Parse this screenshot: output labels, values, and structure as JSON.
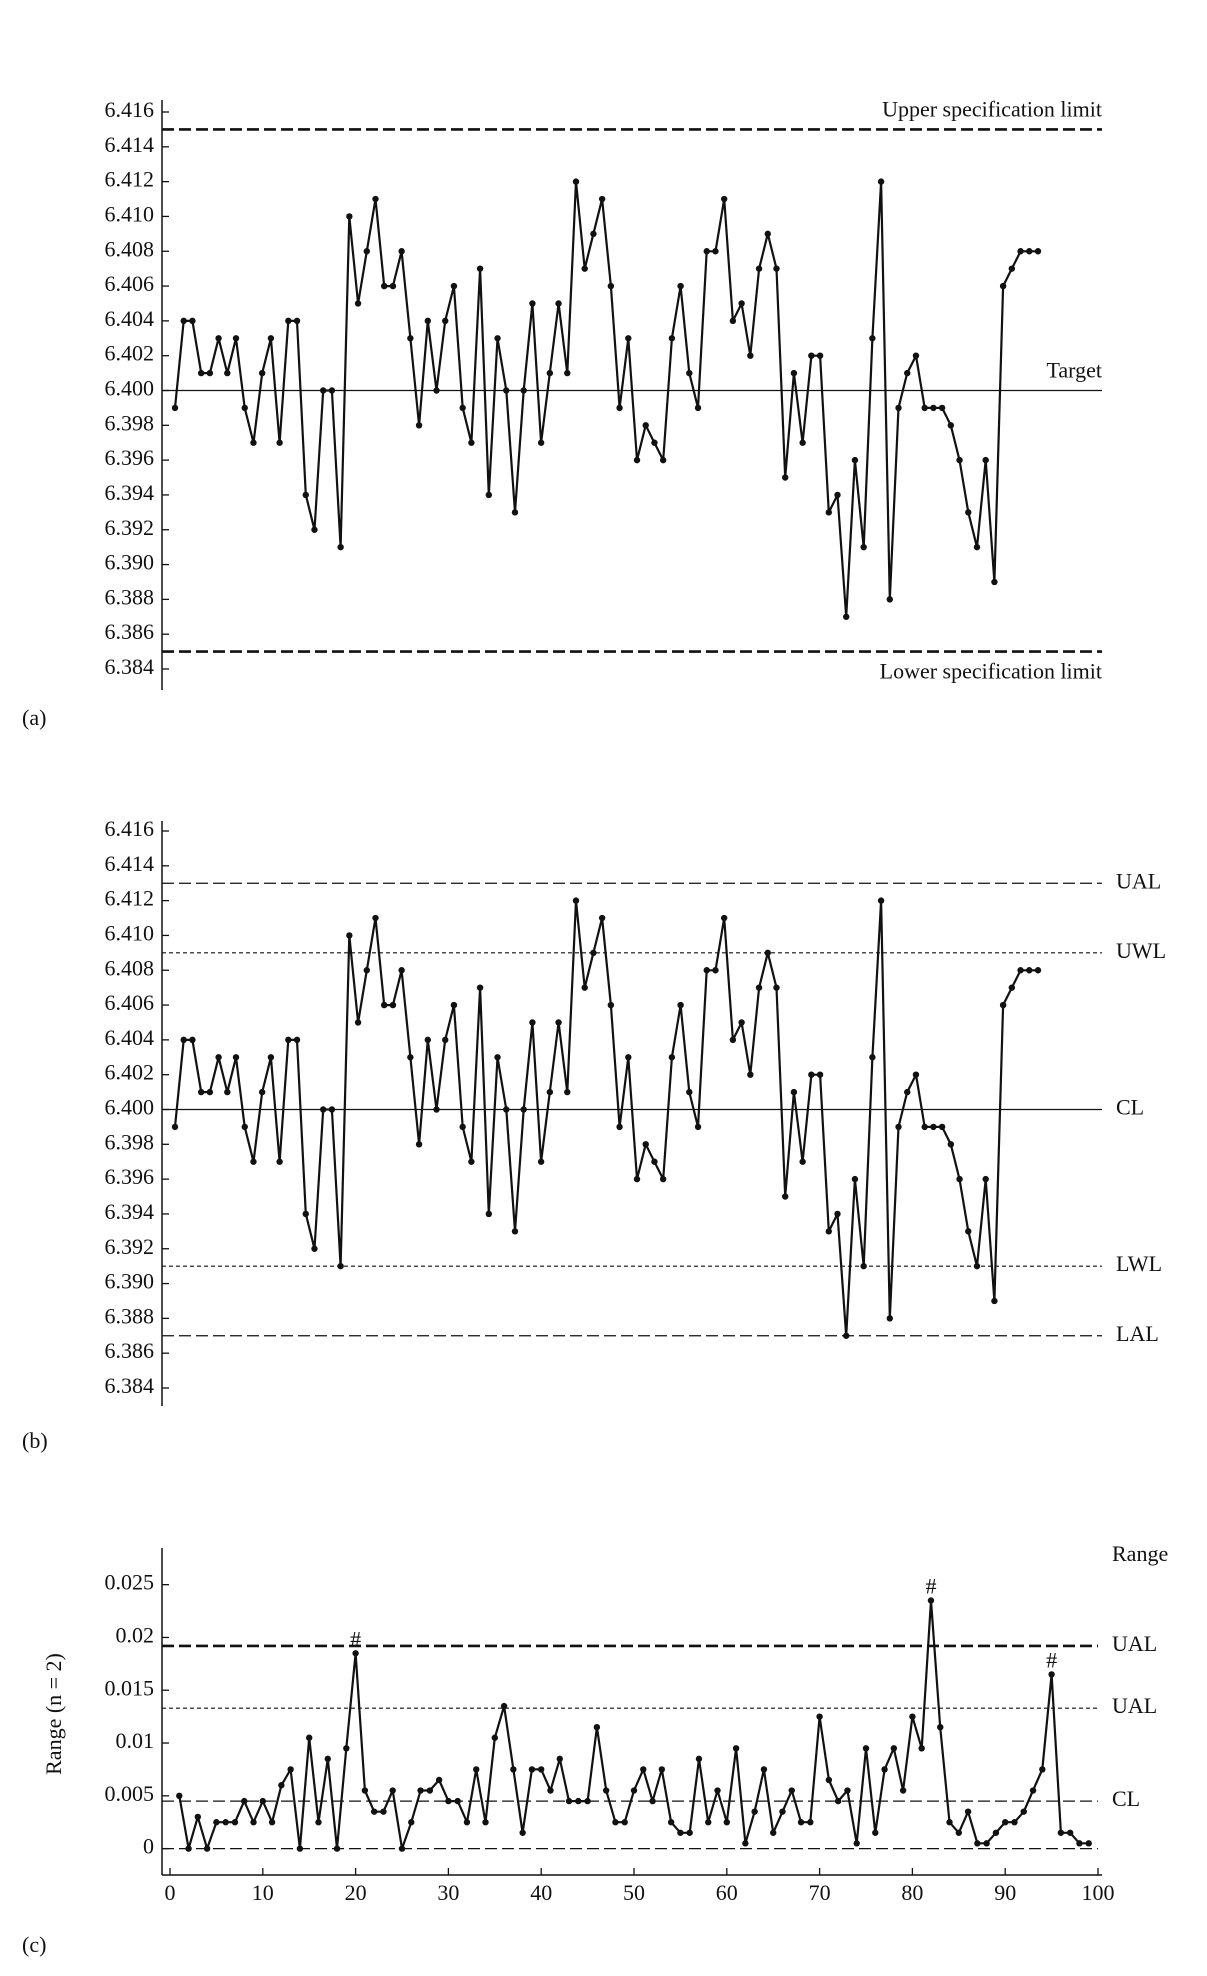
{
  "chart_data": [
    {
      "type": "line",
      "panel_label": "(a)",
      "series": [
        {
          "color": "#111111",
          "values": [
            6.399,
            6.404,
            6.404,
            6.401,
            6.401,
            6.403,
            6.401,
            6.403,
            6.399,
            6.397,
            6.401,
            6.403,
            6.397,
            6.404,
            6.404,
            6.394,
            6.392,
            6.4,
            6.4,
            6.391,
            6.41,
            6.405,
            6.408,
            6.411,
            6.406,
            6.406,
            6.408,
            6.403,
            6.398,
            6.404,
            6.4,
            6.404,
            6.406,
            6.399,
            6.397,
            6.407,
            6.394,
            6.403,
            6.4,
            6.393,
            6.4,
            6.405,
            6.397,
            6.401,
            6.405,
            6.401,
            6.412,
            6.407,
            6.409,
            6.411,
            6.406,
            6.399,
            6.403,
            6.396,
            6.398,
            6.397,
            6.396,
            6.403,
            6.406,
            6.401,
            6.399,
            6.408,
            6.408,
            6.411,
            6.404,
            6.405,
            6.402,
            6.407,
            6.409,
            6.407,
            6.395,
            6.401,
            6.397,
            6.402,
            6.402,
            6.393,
            6.394,
            6.387,
            6.396,
            6.391,
            6.403,
            6.412,
            6.388,
            6.399,
            6.401,
            6.402,
            6.399,
            6.399,
            6.399,
            6.398,
            6.396,
            6.393,
            6.391,
            6.396,
            6.389,
            6.406,
            6.407,
            6.408,
            6.408,
            6.408
          ]
        }
      ],
      "ylim": [
        6.384,
        6.416
      ],
      "yticks": [
        6.384,
        6.386,
        6.388,
        {
          "value": 6.39,
          "label": "6.390"
        },
        6.392,
        6.394,
        6.396,
        6.398,
        {
          "value": 6.4,
          "label": "6.400"
        },
        6.402,
        6.404,
        6.406,
        6.408,
        {
          "value": 6.41,
          "label": "6.410"
        },
        6.412,
        6.414,
        6.416
      ],
      "reference_lines": [
        {
          "value": 6.415,
          "label": "Upper specification limit",
          "style": "thick-dashed",
          "label_position": "above"
        },
        {
          "value": 6.4,
          "label": "Target",
          "style": "solid",
          "label_position": "above"
        },
        {
          "value": 6.385,
          "label": "Lower specification limit",
          "style": "thick-dashed",
          "label_position": "below"
        }
      ]
    },
    {
      "type": "line",
      "panel_label": "(b)",
      "series": [
        {
          "color": "#111111",
          "values": [
            6.399,
            6.404,
            6.404,
            6.401,
            6.401,
            6.403,
            6.401,
            6.403,
            6.399,
            6.397,
            6.401,
            6.403,
            6.397,
            6.404,
            6.404,
            6.394,
            6.392,
            6.4,
            6.4,
            6.391,
            6.41,
            6.405,
            6.408,
            6.411,
            6.406,
            6.406,
            6.408,
            6.403,
            6.398,
            6.404,
            6.4,
            6.404,
            6.406,
            6.399,
            6.397,
            6.407,
            6.394,
            6.403,
            6.4,
            6.393,
            6.4,
            6.405,
            6.397,
            6.401,
            6.405,
            6.401,
            6.412,
            6.407,
            6.409,
            6.411,
            6.406,
            6.399,
            6.403,
            6.396,
            6.398,
            6.397,
            6.396,
            6.403,
            6.406,
            6.401,
            6.399,
            6.408,
            6.408,
            6.411,
            6.404,
            6.405,
            6.402,
            6.407,
            6.409,
            6.407,
            6.395,
            6.401,
            6.397,
            6.402,
            6.402,
            6.393,
            6.394,
            6.387,
            6.396,
            6.391,
            6.403,
            6.412,
            6.388,
            6.399,
            6.401,
            6.402,
            6.399,
            6.399,
            6.399,
            6.398,
            6.396,
            6.393,
            6.391,
            6.396,
            6.389,
            6.406,
            6.407,
            6.408,
            6.408,
            6.408
          ]
        }
      ],
      "ylim": [
        6.384,
        6.416
      ],
      "yticks": [
        6.384,
        6.386,
        6.388,
        {
          "value": 6.39,
          "label": "6.390"
        },
        6.392,
        6.394,
        6.396,
        6.398,
        {
          "value": 6.4,
          "label": "6.400"
        },
        6.402,
        6.404,
        6.406,
        6.408,
        {
          "value": 6.41,
          "label": "6.410"
        },
        6.412,
        6.414,
        6.416
      ],
      "reference_lines": [
        {
          "value": 6.413,
          "label": "UAL",
          "style": "dashed",
          "label_position": "right"
        },
        {
          "value": 6.409,
          "label": "UWL",
          "style": "dotted",
          "label_position": "right"
        },
        {
          "value": 6.4,
          "label": "CL",
          "style": "solid",
          "label_position": "right"
        },
        {
          "value": 6.391,
          "label": "LWL",
          "style": "dotted",
          "label_position": "right"
        },
        {
          "value": 6.387,
          "label": "LAL",
          "style": "dashed",
          "label_position": "right"
        }
      ]
    },
    {
      "type": "line",
      "panel_label": "(c)",
      "subtitle": "Range",
      "y_label": "Range (n = 2)",
      "x": [
        1,
        2,
        3,
        4,
        5,
        6,
        7,
        8,
        9,
        10,
        11,
        12,
        13,
        14,
        15,
        16,
        17,
        18,
        19,
        20,
        21,
        22,
        23,
        24,
        25,
        26,
        27,
        28,
        29,
        30,
        31,
        32,
        33,
        34,
        35,
        36,
        37,
        38,
        39,
        40,
        41,
        42,
        43,
        44,
        45,
        46,
        47,
        48,
        49,
        50,
        51,
        52,
        53,
        54,
        55,
        56,
        57,
        58,
        59,
        60,
        61,
        62,
        63,
        64,
        65,
        66,
        67,
        68,
        69,
        70,
        71,
        72,
        73,
        74,
        75,
        76,
        77,
        78,
        79,
        80,
        81,
        82,
        83,
        84,
        85,
        86,
        87,
        88,
        89,
        90,
        91,
        92,
        93,
        94,
        95,
        96,
        97,
        98,
        99
      ],
      "series": [
        {
          "color": "#111111",
          "values": [
            0.005,
            0,
            0.003,
            0,
            0.0025,
            0.0025,
            0.0025,
            0.0045,
            0.0025,
            0.0045,
            0.0025,
            0.006,
            0.0075,
            0,
            0.0105,
            0.0025,
            0.0085,
            0,
            0.0095,
            0.0185,
            0.0055,
            0.0035,
            0.0035,
            0.0055,
            0,
            0.0025,
            0.0055,
            0.0055,
            0.0065,
            0.0045,
            0.0045,
            0.0025,
            0.0075,
            0.0025,
            0.0105,
            0.0135,
            0.0075,
            0.0015,
            0.0075,
            0.0075,
            0.0055,
            0.0085,
            0.0045,
            0.0045,
            0.0045,
            0.0115,
            0.0055,
            0.0025,
            0.0025,
            0.0055,
            0.0075,
            0.0045,
            0.0075,
            0.0025,
            0.0015,
            0.0015,
            0.0085,
            0.0025,
            0.0055,
            0.0025,
            0.0095,
            0.0005,
            0.0035,
            0.0075,
            0.0015,
            0.0035,
            0.0055,
            0.0025,
            0.0025,
            0.0125,
            0.0065,
            0.0045,
            0.0055,
            0.0005,
            0.0095,
            0.0015,
            0.0075,
            0.0095,
            0.0055,
            0.0125,
            0.0095,
            0.0235,
            0.0115,
            0.0025,
            0.0015,
            0.0035,
            0.0005,
            0.0005,
            0.0015,
            0.0025,
            0.0025,
            0.0035,
            0.0055,
            0.0075,
            0.0165,
            0.0015,
            0.0015,
            0.0005,
            0.0005
          ]
        }
      ],
      "xlim": [
        0,
        100
      ],
      "xticks": [
        0,
        10,
        20,
        30,
        40,
        50,
        60,
        70,
        80,
        90,
        100
      ],
      "ylim": [
        -0.0025,
        0.028
      ],
      "yticks": [
        0,
        0.005,
        0.01,
        0.015,
        0.02,
        0.025
      ],
      "reference_lines": [
        {
          "value": 0.0192,
          "label": "UAL",
          "style": "thick-dashed",
          "label_position": "right"
        },
        {
          "value": 0.0133,
          "label": "UAL",
          "style": "dotted",
          "label_position": "right"
        },
        {
          "value": 0.0045,
          "label": "CL",
          "style": "dashed",
          "label_position": "right"
        },
        {
          "value": 0,
          "style": "dashed"
        }
      ],
      "annotations": [
        {
          "text": "#",
          "x": 20,
          "y": 0.0185
        },
        {
          "text": "#",
          "x": 82,
          "y": 0.0235
        },
        {
          "text": "#",
          "x": 95,
          "y": 0.0165
        }
      ]
    }
  ]
}
